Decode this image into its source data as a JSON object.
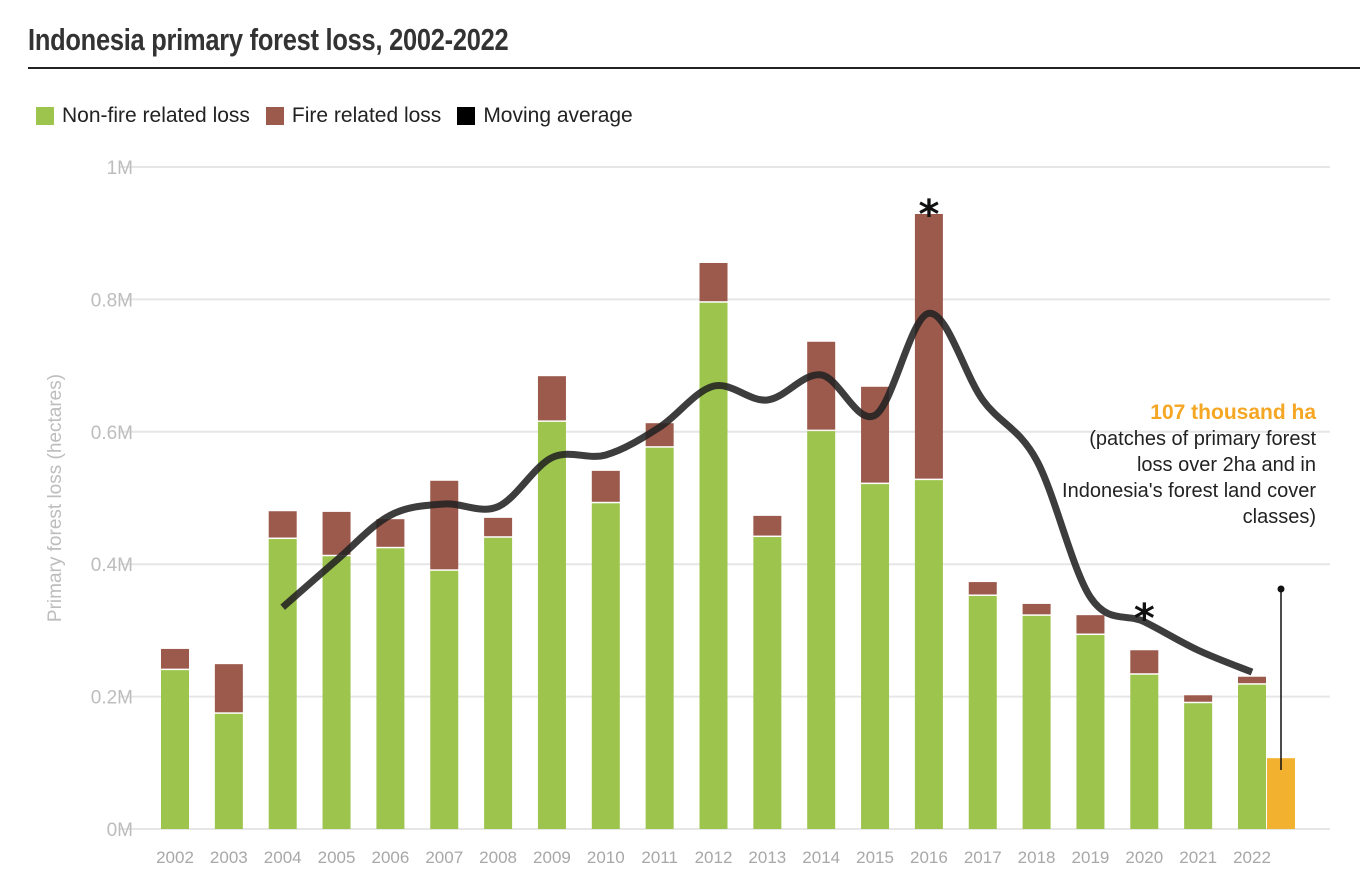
{
  "title": "Indonesia primary forest loss, 2002-2022",
  "colors": {
    "non_fire": "#9dc44d",
    "fire": "#9c5a4c",
    "moving_average": "#222222",
    "highlight": "#f2b12e",
    "highlight_text": "#f5a623"
  },
  "chart_data": {
    "type": "bar",
    "stacked": true,
    "title": "Indonesia primary forest loss, 2002-2022",
    "ylabel": "Primary forest loss (hectares)",
    "xlabel": "",
    "ylim": [
      0,
      1000000
    ],
    "yticks": [
      "0M",
      "0.2M",
      "0.4M",
      "0.6M",
      "0.8M",
      "1M"
    ],
    "ytick_values": [
      0,
      200000,
      400000,
      600000,
      800000,
      1000000
    ],
    "grid": true,
    "legend_position": "top-left",
    "categories": [
      "2002",
      "2003",
      "2004",
      "2005",
      "2006",
      "2007",
      "2008",
      "2009",
      "2010",
      "2011",
      "2012",
      "2013",
      "2014",
      "2015",
      "2016",
      "2017",
      "2018",
      "2019",
      "2020",
      "2021",
      "2022"
    ],
    "series": [
      {
        "name": "Non-fire related loss",
        "type": "bar",
        "values": [
          240000,
          174000,
          438000,
          412000,
          424000,
          390000,
          440000,
          615000,
          492000,
          576000,
          795000,
          441000,
          601000,
          521000,
          527000,
          352000,
          322000,
          293000,
          233000,
          190000,
          218000
        ]
      },
      {
        "name": "Fire related loss",
        "type": "bar",
        "values": [
          32000,
          75000,
          42000,
          67000,
          44000,
          136000,
          30000,
          69000,
          49000,
          37000,
          60000,
          32000,
          135000,
          147000,
          402000,
          21000,
          18000,
          30000,
          37000,
          12000,
          12000
        ]
      },
      {
        "name": "Moving average",
        "type": "line",
        "values": [
          null,
          null,
          335000,
          406000,
          474000,
          491000,
          487000,
          561000,
          565000,
          607000,
          669000,
          648000,
          686000,
          625000,
          779000,
          648000,
          557000,
          350000,
          313000,
          270000,
          237000
        ]
      }
    ],
    "extra_bar": {
      "category": "2022",
      "value": 107000
    },
    "asterisks": [
      "2016",
      "2020"
    ],
    "annotation": {
      "highlight": "107 thousand ha",
      "text": "(patches of primary forest loss over 2ha and in Indonesia's forest land cover classes)"
    }
  },
  "legend": [
    {
      "label": "Non-fire related loss"
    },
    {
      "label": "Fire related loss"
    },
    {
      "label": "Moving average"
    }
  ],
  "asterisk_label": "*"
}
